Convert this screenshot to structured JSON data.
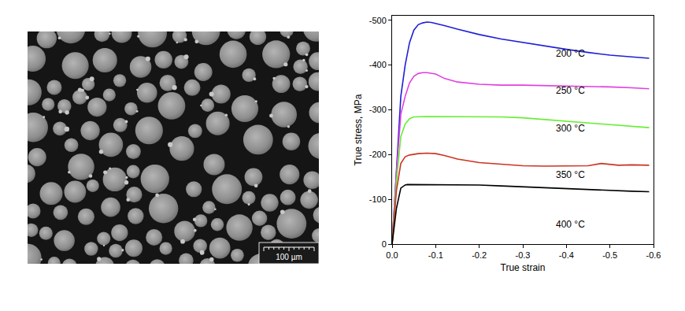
{
  "chart_data": {
    "type": "line",
    "x_label": "True strain",
    "y_label": "True stress, MPa",
    "xlim": [
      0,
      -0.6
    ],
    "ylim": [
      0,
      -510
    ],
    "xticks": [
      {
        "value": 0,
        "label": "0.0"
      },
      -0.1,
      -0.2,
      -0.3,
      -0.4,
      -0.5,
      -0.6
    ],
    "yticks": [
      0,
      -100,
      -200,
      -300,
      -400,
      -500
    ],
    "grid": false,
    "series": [
      {
        "name": "200 °C",
        "color": "#1f1fd6",
        "x": [
          0,
          -0.005,
          -0.01,
          -0.02,
          -0.03,
          -0.04,
          -0.05,
          -0.06,
          -0.07,
          -0.08,
          -0.09,
          -0.1,
          -0.12,
          -0.15,
          -0.2,
          -0.25,
          -0.3,
          -0.35,
          -0.4,
          -0.45,
          -0.5,
          -0.55,
          -0.59
        ],
        "values": [
          0,
          -80,
          -170,
          -330,
          -400,
          -450,
          -478,
          -490,
          -494,
          -496,
          -495,
          -493,
          -488,
          -480,
          -468,
          -458,
          -450,
          -442,
          -435,
          -428,
          -422,
          -418,
          -415
        ]
      },
      {
        "name": "250 °C",
        "color": "#e040e0",
        "x": [
          0,
          -0.005,
          -0.01,
          -0.02,
          -0.03,
          -0.04,
          -0.05,
          -0.06,
          -0.07,
          -0.08,
          -0.1,
          -0.12,
          -0.15,
          -0.2,
          -0.25,
          -0.3,
          -0.35,
          -0.4,
          -0.45,
          -0.5,
          -0.55,
          -0.59
        ],
        "values": [
          0,
          -80,
          -160,
          -290,
          -330,
          -360,
          -375,
          -381,
          -383,
          -383,
          -380,
          -370,
          -362,
          -357,
          -355,
          -355,
          -354,
          -354,
          -352,
          -351,
          -349,
          -347
        ]
      },
      {
        "name": "300 °C",
        "color": "#66ee33",
        "x": [
          0,
          -0.005,
          -0.01,
          -0.02,
          -0.03,
          -0.04,
          -0.05,
          -0.08,
          -0.12,
          -0.2,
          -0.25,
          -0.3,
          -0.35,
          -0.4,
          -0.45,
          -0.5,
          -0.55,
          -0.59
        ],
        "values": [
          0,
          -70,
          -140,
          -240,
          -268,
          -280,
          -284,
          -285,
          -285,
          -285,
          -284,
          -282,
          -278,
          -274,
          -270,
          -266,
          -263,
          -260
        ]
      },
      {
        "name": "350 °C",
        "color": "#cc3322",
        "x": [
          0,
          -0.005,
          -0.01,
          -0.02,
          -0.03,
          -0.04,
          -0.06,
          -0.08,
          -0.1,
          -0.12,
          -0.15,
          -0.2,
          -0.25,
          -0.3,
          -0.35,
          -0.4,
          -0.45,
          -0.48,
          -0.5,
          -0.52,
          -0.55,
          -0.59
        ],
        "values": [
          0,
          -60,
          -120,
          -180,
          -195,
          -199,
          -202,
          -203,
          -202,
          -198,
          -190,
          -182,
          -178,
          -175,
          -174,
          -174,
          -175,
          -180,
          -178,
          -176,
          -177,
          -176
        ]
      },
      {
        "name": "400 °C",
        "color": "#000000",
        "x": [
          0,
          -0.005,
          -0.01,
          -0.02,
          -0.03,
          -0.035,
          -0.05,
          -0.1,
          -0.15,
          -0.2,
          -0.25,
          -0.3,
          -0.35,
          -0.4,
          -0.45,
          -0.5,
          -0.55,
          -0.59
        ],
        "values": [
          0,
          -40,
          -80,
          -125,
          -132,
          -133,
          -133,
          -133,
          -133,
          -132,
          -130,
          -128,
          -126,
          -123,
          -121,
          -120,
          -118,
          -117
        ]
      }
    ]
  },
  "micrograph": {
    "scale_bar": "100 µm"
  }
}
